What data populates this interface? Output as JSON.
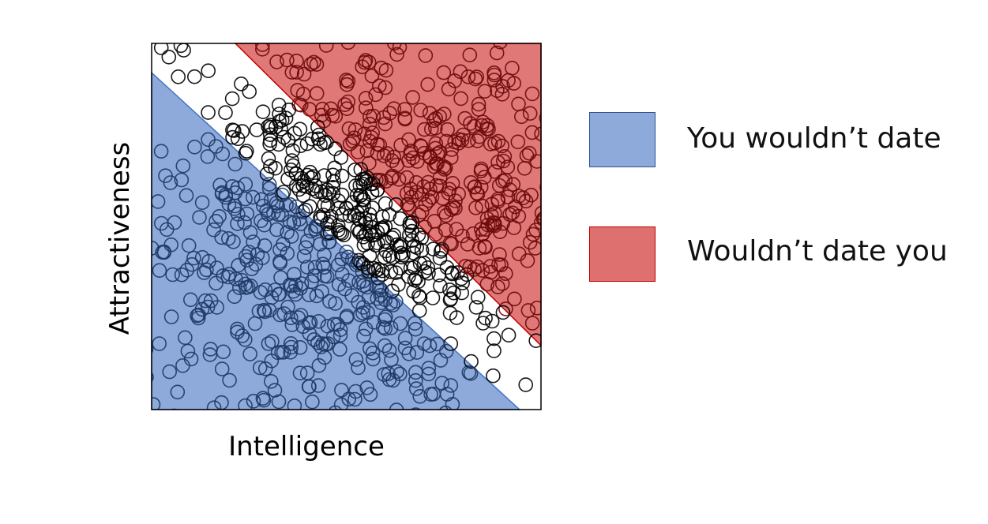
{
  "chart_data": {
    "type": "scatter",
    "title": "",
    "xlabel": "Intelligence",
    "ylabel": "Attractiveness",
    "xlim": [
      0,
      1
    ],
    "ylim": [
      0,
      1
    ],
    "grid": false,
    "legend_placement": "right",
    "regions": [
      {
        "name": "You wouldn’t date",
        "color": "#8eaadb",
        "edge": "#4472c4",
        "boundary": {
          "x0": 0,
          "y0": 0.92,
          "x1": 0.945,
          "y1": 0
        }
      },
      {
        "name": "Wouldn’t date you",
        "color": "#e07878",
        "edge": "#c00000",
        "boundary": {
          "x0": 0.215,
          "y0": 1,
          "x1": 1,
          "y1": 0.175
        }
      }
    ],
    "distribution": {
      "mean": [
        0.55,
        0.52
      ],
      "sd_along": 0.3,
      "sd_across": 0.26,
      "count": 900
    },
    "points": [
      [
        0.5,
        0.55
      ],
      [
        0.45,
        0.6
      ],
      [
        0.6,
        0.5
      ],
      [
        0.55,
        0.48
      ],
      [
        0.52,
        0.53
      ],
      [
        0.48,
        0.57
      ],
      [
        0.2,
        0.37
      ],
      [
        0.12,
        0.25
      ],
      [
        0.35,
        0.28
      ],
      [
        0.3,
        0.18
      ],
      [
        0.08,
        0.12
      ],
      [
        0.2,
        0.08
      ],
      [
        0.4,
        0.1
      ],
      [
        0.62,
        0.08
      ],
      [
        0.7,
        0.18
      ],
      [
        0.55,
        0.22
      ],
      [
        0.05,
        0.45
      ],
      [
        0.02,
        0.38
      ],
      [
        0.26,
        0.58
      ],
      [
        0.18,
        0.47
      ],
      [
        0.33,
        0.4
      ],
      [
        0.4,
        0.46
      ],
      [
        0.25,
        0.43
      ],
      [
        0.28,
        0.32
      ],
      [
        0.44,
        0.18
      ],
      [
        0.37,
        0.34
      ],
      [
        0.6,
        0.3
      ],
      [
        0.15,
        0.15
      ],
      [
        0.1,
        0.3
      ],
      [
        0.22,
        0.22
      ],
      [
        0.75,
        0.92
      ],
      [
        0.65,
        0.82
      ],
      [
        0.9,
        0.72
      ],
      [
        0.82,
        0.62
      ],
      [
        0.95,
        0.8
      ],
      [
        0.7,
        0.7
      ],
      [
        0.78,
        0.55
      ],
      [
        0.88,
        0.9
      ],
      [
        0.6,
        0.78
      ],
      [
        0.68,
        0.62
      ],
      [
        0.55,
        0.85
      ],
      [
        0.74,
        0.8
      ],
      [
        0.92,
        0.6
      ],
      [
        0.85,
        0.48
      ],
      [
        0.63,
        0.97
      ],
      [
        0.58,
        0.7
      ],
      [
        0.8,
        0.75
      ],
      [
        0.97,
        0.7
      ],
      [
        0.85,
        0.38
      ],
      [
        0.72,
        0.58
      ],
      [
        0.66,
        0.68
      ],
      [
        0.84,
        0.82
      ],
      [
        0.5,
        0.9
      ],
      [
        0.43,
        0.75
      ],
      [
        0.4,
        0.64
      ],
      [
        0.36,
        0.68
      ],
      [
        0.47,
        0.66
      ],
      [
        0.58,
        0.6
      ],
      [
        0.63,
        0.45
      ],
      [
        0.7,
        0.4
      ],
      [
        0.68,
        0.36
      ],
      [
        0.56,
        0.42
      ],
      [
        0.53,
        0.4
      ],
      [
        0.45,
        0.48
      ],
      [
        0.38,
        0.52
      ],
      [
        0.35,
        0.63
      ]
    ]
  },
  "legend": [
    {
      "label": "You wouldn’t date",
      "color": "#8eaadb",
      "edge": "#2f528f"
    },
    {
      "label": "Wouldn’t date you",
      "color": "#df7070",
      "edge": "#c00000"
    }
  ]
}
